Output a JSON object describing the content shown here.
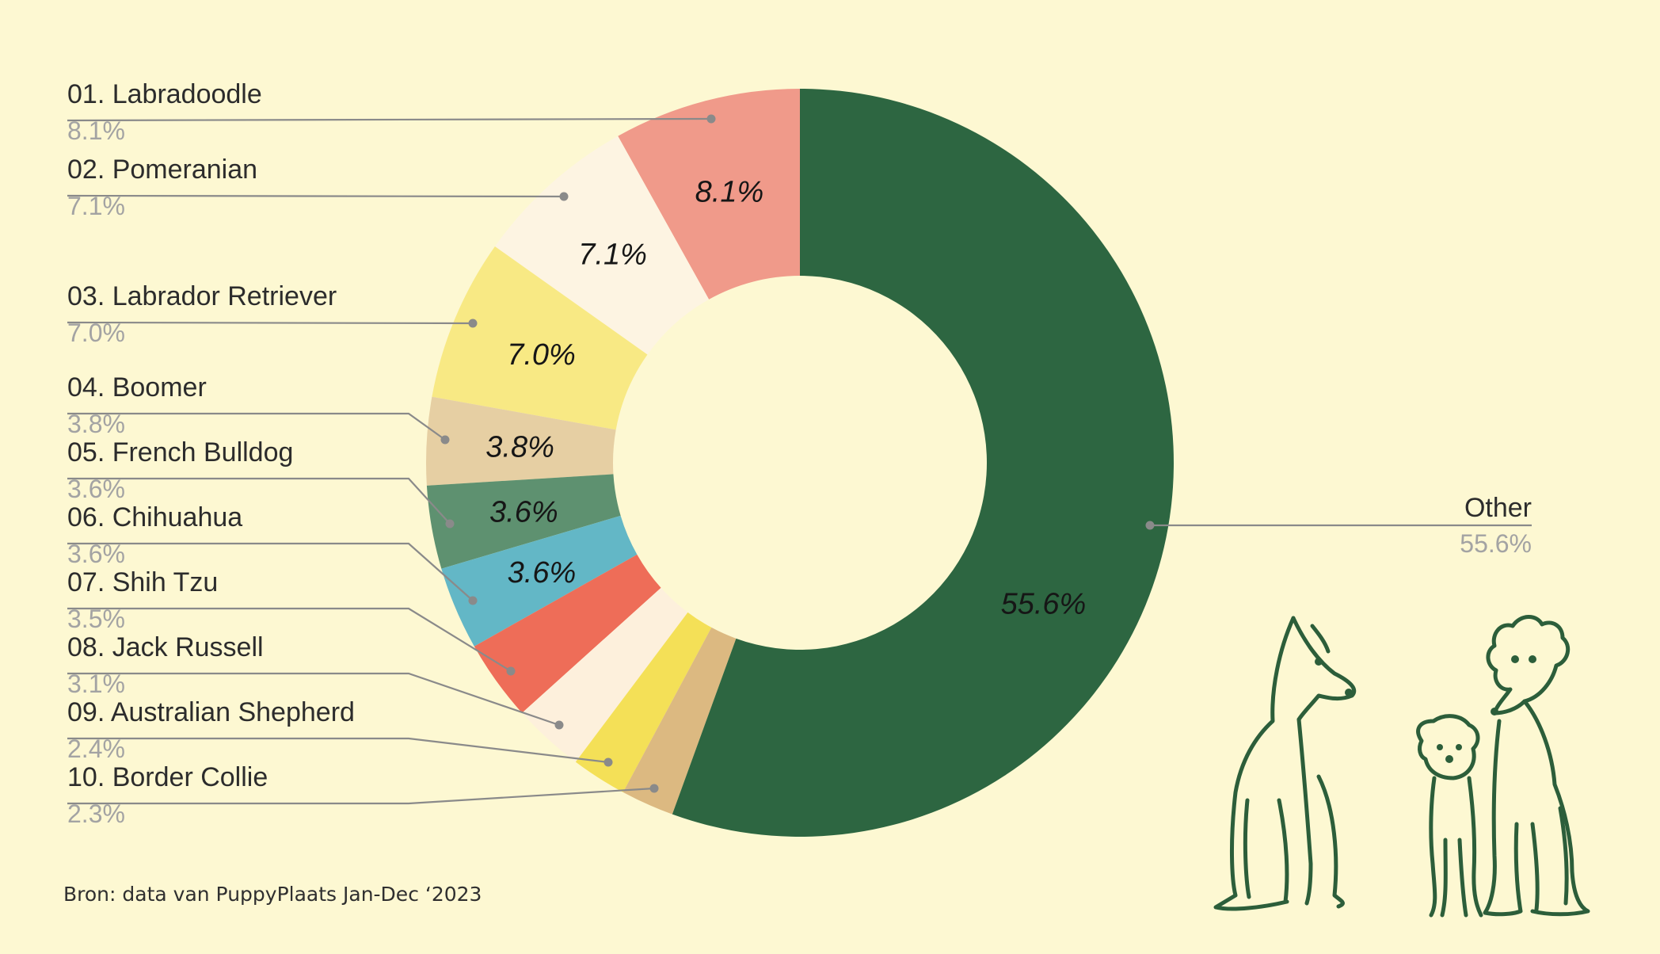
{
  "chart_data": {
    "type": "pie",
    "variant": "donut",
    "title": "",
    "slices": [
      {
        "name": "01. Labradoodle",
        "value": 8.1,
        "label": "8.1%",
        "color": "#f09a8a",
        "show_inner_label": true
      },
      {
        "name": "02. Pomeranian",
        "value": 7.1,
        "label": "7.1%",
        "color": "#fdf4e2",
        "show_inner_label": true
      },
      {
        "name": "03. Labrador Retriever",
        "value": 7.0,
        "label": "7.0%",
        "color": "#f8e984",
        "show_inner_label": true
      },
      {
        "name": "04. Boomer",
        "value": 3.8,
        "label": "3.8%",
        "color": "#e6cfa3",
        "show_inner_label": true
      },
      {
        "name": "05. French Bulldog",
        "value": 3.6,
        "label": "3.6%",
        "color": "#5e9170",
        "show_inner_label": true
      },
      {
        "name": "06. Chihuahua",
        "value": 3.6,
        "label": "3.6%",
        "color": "#63b7c6",
        "show_inner_label": true
      },
      {
        "name": "07. Shih Tzu",
        "value": 3.5,
        "label": "3.5%",
        "color": "#ee6d58",
        "show_inner_label": false
      },
      {
        "name": "08. Jack Russell",
        "value": 3.1,
        "label": "3.1%",
        "color": "#fdf0dc",
        "show_inner_label": false
      },
      {
        "name": "09. Australian Shepherd",
        "value": 2.4,
        "label": "2.4%",
        "color": "#f4e057",
        "show_inner_label": false
      },
      {
        "name": "10. Border Collie",
        "value": 2.3,
        "label": "2.3%",
        "color": "#dcb981",
        "show_inner_label": false
      },
      {
        "name": "Other",
        "value": 55.6,
        "label": "55.6%",
        "color": "#2d6641",
        "show_inner_label": true
      }
    ],
    "start_angle_deg": 0,
    "direction": "counterclockwise",
    "legend": "left side with leader lines; Other on right"
  },
  "source_note": "Bron: data van PuppyPlaats Jan-Dec ‘2023",
  "illustration": {
    "name": "three-dogs-sketch",
    "color": "#2c5e3a"
  },
  "background_color": "#fdf8d2"
}
